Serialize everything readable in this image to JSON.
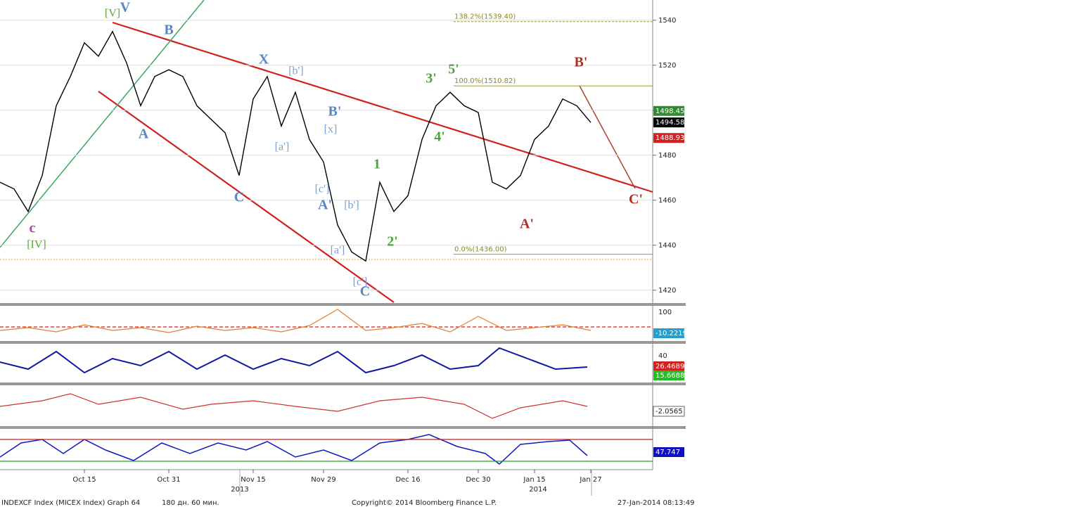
{
  "chart_data": {
    "type": "line",
    "categories": [
      null,
      null,
      null,
      null,
      null,
      null,
      "Oct 15",
      null,
      null,
      null,
      null,
      null,
      "Oct 31",
      null,
      null,
      null,
      null,
      null,
      "Nov 15",
      null,
      null,
      null,
      null,
      "Nov 29",
      null,
      null,
      null,
      null,
      null,
      "Dec 16",
      null,
      null,
      null,
      null,
      "Dec 30",
      null,
      null,
      null,
      "Jan 15",
      null,
      null,
      null,
      "Jan 27"
    ],
    "series": [
      {
        "color": "#000000",
        "values": [
          1468,
          1465,
          1455,
          1471,
          1502,
          1515,
          1530,
          1524,
          1535,
          1521,
          1502,
          1515,
          1518,
          1515,
          1502,
          1496,
          1490,
          1471,
          1505,
          1515,
          1493,
          1508,
          1487,
          1477,
          1449,
          1437,
          1433,
          1468,
          1455,
          1462,
          1487,
          1502,
          1508,
          1502,
          1499,
          1468,
          1465,
          1471,
          1487,
          1493,
          1505,
          1502,
          1494.58
        ]
      }
    ],
    "ylim": [
      1414,
      1549
    ],
    "yticks": [
      1420,
      1440,
      1460,
      1480,
      1500,
      1520,
      1540
    ],
    "years": [
      "2013",
      "2014"
    ],
    "fib_levels": [
      {
        "value": 1539.4,
        "label": "138.2%(1539.40)"
      },
      {
        "value": 1510.82,
        "label": "100.0%(1510.82)"
      },
      {
        "value": 1436,
        "label": "0.0%(1436.00)"
      }
    ],
    "price_tags": [
      {
        "value": 1498.45,
        "label": "1498.45",
        "color": "#2e8b2e"
      },
      {
        "value": 1494.58,
        "label": "1494.58",
        "color": "#000000"
      },
      {
        "value": 1488.93,
        "label": "1488.93",
        "color": "#d02020"
      }
    ],
    "annotations": [
      {
        "text": "[V]",
        "color": "#5aa83a"
      },
      {
        "text": "V",
        "color": "#5b86c4"
      },
      {
        "text": "B",
        "color": "#5b86c4"
      },
      {
        "text": "A",
        "color": "#5b86c4"
      },
      {
        "text": "C",
        "color": "#5b86c4"
      },
      {
        "text": "X",
        "color": "#5b86c4"
      },
      {
        "text": "[b']",
        "color": "#7aa0d4"
      },
      {
        "text": "[a']",
        "color": "#7aa0d4"
      },
      {
        "text": "[x]",
        "color": "#7aa0d4"
      },
      {
        "text": "B'",
        "color": "#5b86c4"
      },
      {
        "text": "[c']",
        "color": "#7aa0d4"
      },
      {
        "text": "A'",
        "color": "#5b86c4"
      },
      {
        "text": "[b']",
        "color": "#7aa0d4"
      },
      {
        "text": "[a']",
        "color": "#7aa0d4"
      },
      {
        "text": "[c']",
        "color": "#7aa0d4"
      },
      {
        "text": "C",
        "color": "#5b86c4"
      },
      {
        "text": "1",
        "color": "#4aa830"
      },
      {
        "text": "2'",
        "color": "#4aa830"
      },
      {
        "text": "3'",
        "color": "#4aa830"
      },
      {
        "text": "5'",
        "color": "#4aa830"
      },
      {
        "text": "4'",
        "color": "#4aa830"
      },
      {
        "text": "B'",
        "color": "#b03020"
      },
      {
        "text": "A'",
        "color": "#b03020"
      },
      {
        "text": "C'",
        "color": "#b03020"
      },
      {
        "text": "c",
        "color": "#b040b0"
      },
      {
        "text": "[IV]",
        "color": "#5aa83a"
      }
    ],
    "indicator_labels": [
      {
        "text": "100",
        "color": null
      },
      {
        "text": "-10.2219",
        "color": "#20a0d0"
      },
      {
        "text": "40",
        "color": null
      },
      {
        "text": "26.4689",
        "color": "#d02020"
      },
      {
        "text": "15.6688",
        "color": "#20c020"
      },
      {
        "text": "-2.0565",
        "color": "#ffffff"
      },
      {
        "text": "47.747",
        "color": "#1010c0"
      }
    ],
    "footer": {
      "left": "INDEXCF Index (MICEX Index) Graph 64",
      "period": "180 дн. 60 мин.",
      "copyright": "Copyright© 2014 Bloomberg Finance L.P.",
      "timestamp": "27-Jan-2014 08:13:49"
    }
  }
}
